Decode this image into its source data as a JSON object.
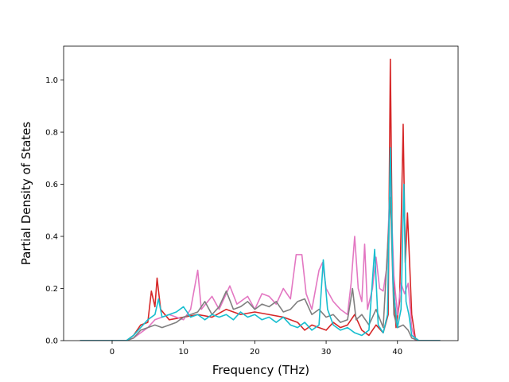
{
  "chart_data": {
    "type": "line",
    "title": "",
    "xlabel": "Frequency (THz)",
    "ylabel": "Partial Density of States",
    "xlim": [
      -6.8,
      48.5
    ],
    "ylim": [
      0,
      1.13
    ],
    "xticks": [
      0,
      10,
      20,
      30,
      40
    ],
    "yticks": [
      0.0,
      0.2,
      0.4,
      0.6,
      0.8,
      1.0
    ],
    "xtick_labels": [
      "0",
      "10",
      "20",
      "30",
      "40"
    ],
    "ytick_labels": [
      "0.0",
      "0.2",
      "0.4",
      "0.6",
      "0.8",
      "1.0"
    ],
    "grid": false,
    "legend": false,
    "series": [
      {
        "color": "#d62728",
        "points": [
          [
            -4.5,
            0
          ],
          [
            2,
            0
          ],
          [
            3,
            0.02
          ],
          [
            4,
            0.06
          ],
          [
            5,
            0.07
          ],
          [
            5.5,
            0.19
          ],
          [
            6,
            0.13
          ],
          [
            6.3,
            0.24
          ],
          [
            6.8,
            0.12
          ],
          [
            8,
            0.08
          ],
          [
            10,
            0.09
          ],
          [
            12,
            0.1
          ],
          [
            14,
            0.09
          ],
          [
            16,
            0.12
          ],
          [
            18,
            0.1
          ],
          [
            20,
            0.11
          ],
          [
            22,
            0.1
          ],
          [
            24,
            0.09
          ],
          [
            26,
            0.07
          ],
          [
            27,
            0.04
          ],
          [
            28,
            0.06
          ],
          [
            29,
            0.05
          ],
          [
            30,
            0.04
          ],
          [
            31,
            0.07
          ],
          [
            32,
            0.05
          ],
          [
            33,
            0.06
          ],
          [
            34,
            0.1
          ],
          [
            35,
            0.04
          ],
          [
            36,
            0.02
          ],
          [
            37,
            0.06
          ],
          [
            38,
            0.03
          ],
          [
            38.7,
            0.1
          ],
          [
            39,
            1.08
          ],
          [
            39.3,
            0.3
          ],
          [
            39.8,
            0.05
          ],
          [
            40.3,
            0.15
          ],
          [
            40.8,
            0.83
          ],
          [
            41.1,
            0.3
          ],
          [
            41.4,
            0.49
          ],
          [
            41.7,
            0.3
          ],
          [
            42,
            0.1
          ],
          [
            42.5,
            0.01
          ],
          [
            43,
            0
          ],
          [
            46,
            0
          ]
        ]
      },
      {
        "color": "#e377c2",
        "points": [
          [
            -4.5,
            0
          ],
          [
            2,
            0
          ],
          [
            3,
            0.01
          ],
          [
            4,
            0.03
          ],
          [
            5,
            0.05
          ],
          [
            6,
            0.08
          ],
          [
            8,
            0.1
          ],
          [
            10,
            0.08
          ],
          [
            11,
            0.12
          ],
          [
            12,
            0.27
          ],
          [
            12.5,
            0.12
          ],
          [
            14,
            0.17
          ],
          [
            15,
            0.12
          ],
          [
            16.5,
            0.21
          ],
          [
            17.5,
            0.14
          ],
          [
            19,
            0.17
          ],
          [
            20,
            0.12
          ],
          [
            21,
            0.18
          ],
          [
            22,
            0.17
          ],
          [
            23,
            0.14
          ],
          [
            24,
            0.2
          ],
          [
            25,
            0.16
          ],
          [
            25.8,
            0.33
          ],
          [
            26.6,
            0.33
          ],
          [
            27.2,
            0.18
          ],
          [
            28,
            0.12
          ],
          [
            29,
            0.27
          ],
          [
            29.5,
            0.3
          ],
          [
            30,
            0.2
          ],
          [
            31,
            0.15
          ],
          [
            32,
            0.12
          ],
          [
            33,
            0.1
          ],
          [
            33.5,
            0.22
          ],
          [
            34,
            0.4
          ],
          [
            34.5,
            0.2
          ],
          [
            35,
            0.15
          ],
          [
            35.4,
            0.37
          ],
          [
            35.8,
            0.12
          ],
          [
            36.5,
            0.2
          ],
          [
            37,
            0.32
          ],
          [
            37.5,
            0.2
          ],
          [
            38,
            0.19
          ],
          [
            38.5,
            0.28
          ],
          [
            39,
            0.62
          ],
          [
            39.5,
            0.25
          ],
          [
            40,
            0.1
          ],
          [
            40.5,
            0.22
          ],
          [
            41,
            0.18
          ],
          [
            41.5,
            0.22
          ],
          [
            42,
            0.05
          ],
          [
            42.5,
            0
          ],
          [
            46,
            0
          ]
        ]
      },
      {
        "color": "#7f7f7f",
        "points": [
          [
            -4.5,
            0
          ],
          [
            2,
            0
          ],
          [
            3,
            0.01
          ],
          [
            4,
            0.04
          ],
          [
            5,
            0.05
          ],
          [
            6,
            0.06
          ],
          [
            7,
            0.05
          ],
          [
            8,
            0.06
          ],
          [
            9,
            0.07
          ],
          [
            10,
            0.09
          ],
          [
            11,
            0.1
          ],
          [
            12,
            0.11
          ],
          [
            13,
            0.15
          ],
          [
            14,
            0.1
          ],
          [
            15,
            0.13
          ],
          [
            16,
            0.19
          ],
          [
            17,
            0.12
          ],
          [
            18,
            0.13
          ],
          [
            19,
            0.15
          ],
          [
            20,
            0.12
          ],
          [
            21,
            0.14
          ],
          [
            22,
            0.13
          ],
          [
            23,
            0.15
          ],
          [
            24,
            0.11
          ],
          [
            25,
            0.12
          ],
          [
            26,
            0.15
          ],
          [
            27,
            0.16
          ],
          [
            28,
            0.1
          ],
          [
            29,
            0.12
          ],
          [
            30,
            0.09
          ],
          [
            31,
            0.1
          ],
          [
            32,
            0.07
          ],
          [
            33,
            0.08
          ],
          [
            33.7,
            0.2
          ],
          [
            34.2,
            0.08
          ],
          [
            35,
            0.1
          ],
          [
            36,
            0.06
          ],
          [
            37,
            0.12
          ],
          [
            38,
            0.05
          ],
          [
            39,
            0.55
          ],
          [
            39.5,
            0.1
          ],
          [
            40,
            0.05
          ],
          [
            40.8,
            0.06
          ],
          [
            41.5,
            0.04
          ],
          [
            42,
            0.01
          ],
          [
            43,
            0
          ],
          [
            46,
            0
          ]
        ]
      },
      {
        "color": "#17becf",
        "points": [
          [
            -4.5,
            0
          ],
          [
            2,
            0
          ],
          [
            3,
            0.02
          ],
          [
            4,
            0.05
          ],
          [
            5,
            0.08
          ],
          [
            6,
            0.1
          ],
          [
            6.5,
            0.16
          ],
          [
            7,
            0.09
          ],
          [
            8,
            0.1
          ],
          [
            9,
            0.11
          ],
          [
            10,
            0.13
          ],
          [
            11,
            0.09
          ],
          [
            12,
            0.1
          ],
          [
            13,
            0.08
          ],
          [
            14,
            0.1
          ],
          [
            15,
            0.09
          ],
          [
            16,
            0.1
          ],
          [
            17,
            0.08
          ],
          [
            18,
            0.11
          ],
          [
            19,
            0.09
          ],
          [
            20,
            0.1
          ],
          [
            21,
            0.08
          ],
          [
            22,
            0.09
          ],
          [
            23,
            0.07
          ],
          [
            24,
            0.09
          ],
          [
            25,
            0.06
          ],
          [
            26,
            0.05
          ],
          [
            27,
            0.07
          ],
          [
            28,
            0.04
          ],
          [
            29,
            0.06
          ],
          [
            29.6,
            0.31
          ],
          [
            30.2,
            0.12
          ],
          [
            31,
            0.06
          ],
          [
            32,
            0.04
          ],
          [
            33,
            0.05
          ],
          [
            34,
            0.03
          ],
          [
            35,
            0.02
          ],
          [
            36,
            0.04
          ],
          [
            36.8,
            0.35
          ],
          [
            37.3,
            0.06
          ],
          [
            38,
            0.03
          ],
          [
            38.6,
            0.1
          ],
          [
            39,
            0.74
          ],
          [
            39.4,
            0.2
          ],
          [
            40,
            0.05
          ],
          [
            40.5,
            0.12
          ],
          [
            40.9,
            0.6
          ],
          [
            41.2,
            0.15
          ],
          [
            41.6,
            0.1
          ],
          [
            42,
            0.02
          ],
          [
            43,
            0
          ],
          [
            46,
            0
          ]
        ]
      }
    ]
  }
}
